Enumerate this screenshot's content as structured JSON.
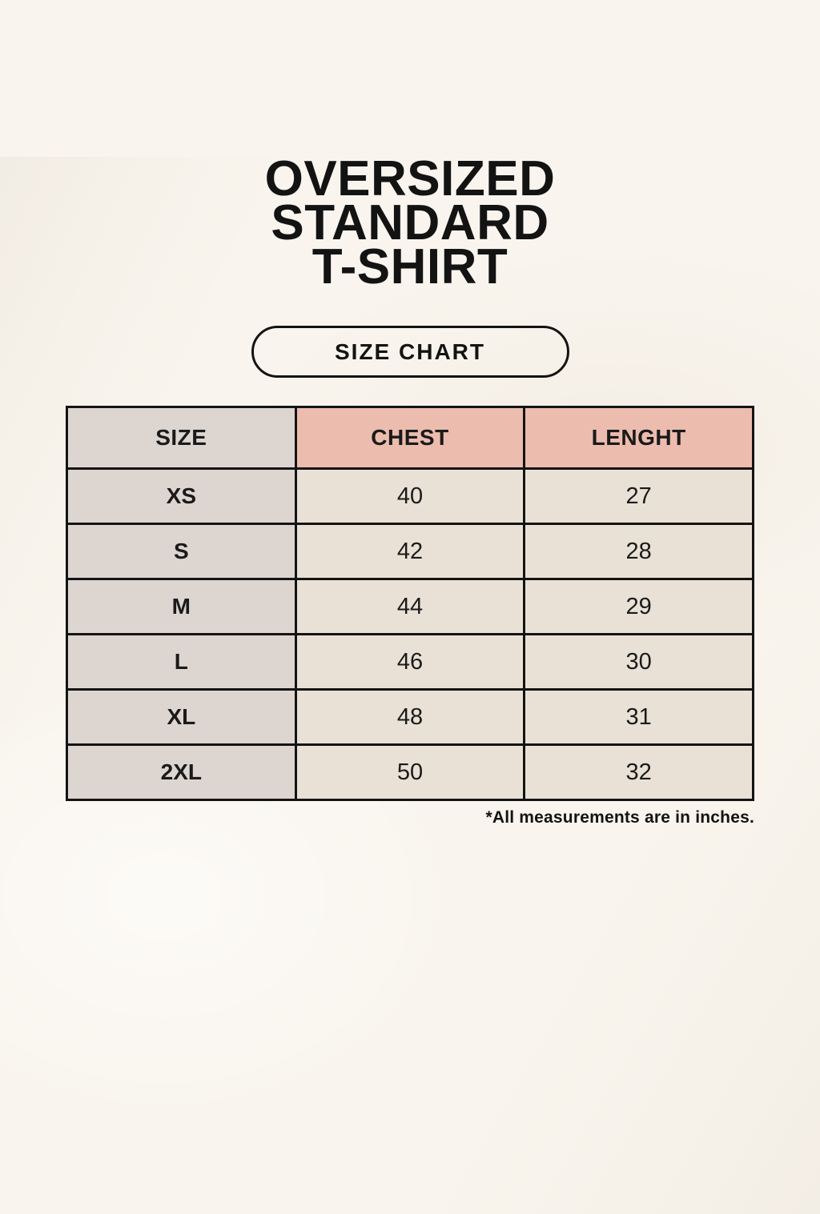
{
  "page": {
    "title_lines": [
      "OVERSIZED",
      "STANDARD",
      "T-SHIRT"
    ],
    "size_chart_button_label": "SIZE CHART",
    "footnote": "*All measurements are in inches."
  },
  "table": {
    "headers": [
      "SIZE",
      "CHEST",
      "LENGHT"
    ],
    "rows": [
      {
        "size": "XS",
        "chest": "40",
        "length": "27"
      },
      {
        "size": "S",
        "chest": "42",
        "length": "28"
      },
      {
        "size": "M",
        "chest": "44",
        "length": "29"
      },
      {
        "size": "L",
        "chest": "46",
        "length": "30"
      },
      {
        "size": "XL",
        "chest": "48",
        "length": "31"
      },
      {
        "size": "2XL",
        "chest": "50",
        "length": "32"
      }
    ]
  },
  "colors": {
    "background": "#f9f5ee",
    "header_gray_cell": "#ddd5d0",
    "header_pink_cell": "#ecbcae",
    "data_cream_cell": "#e9e1d6",
    "border": "#141414",
    "text": "#131313"
  }
}
